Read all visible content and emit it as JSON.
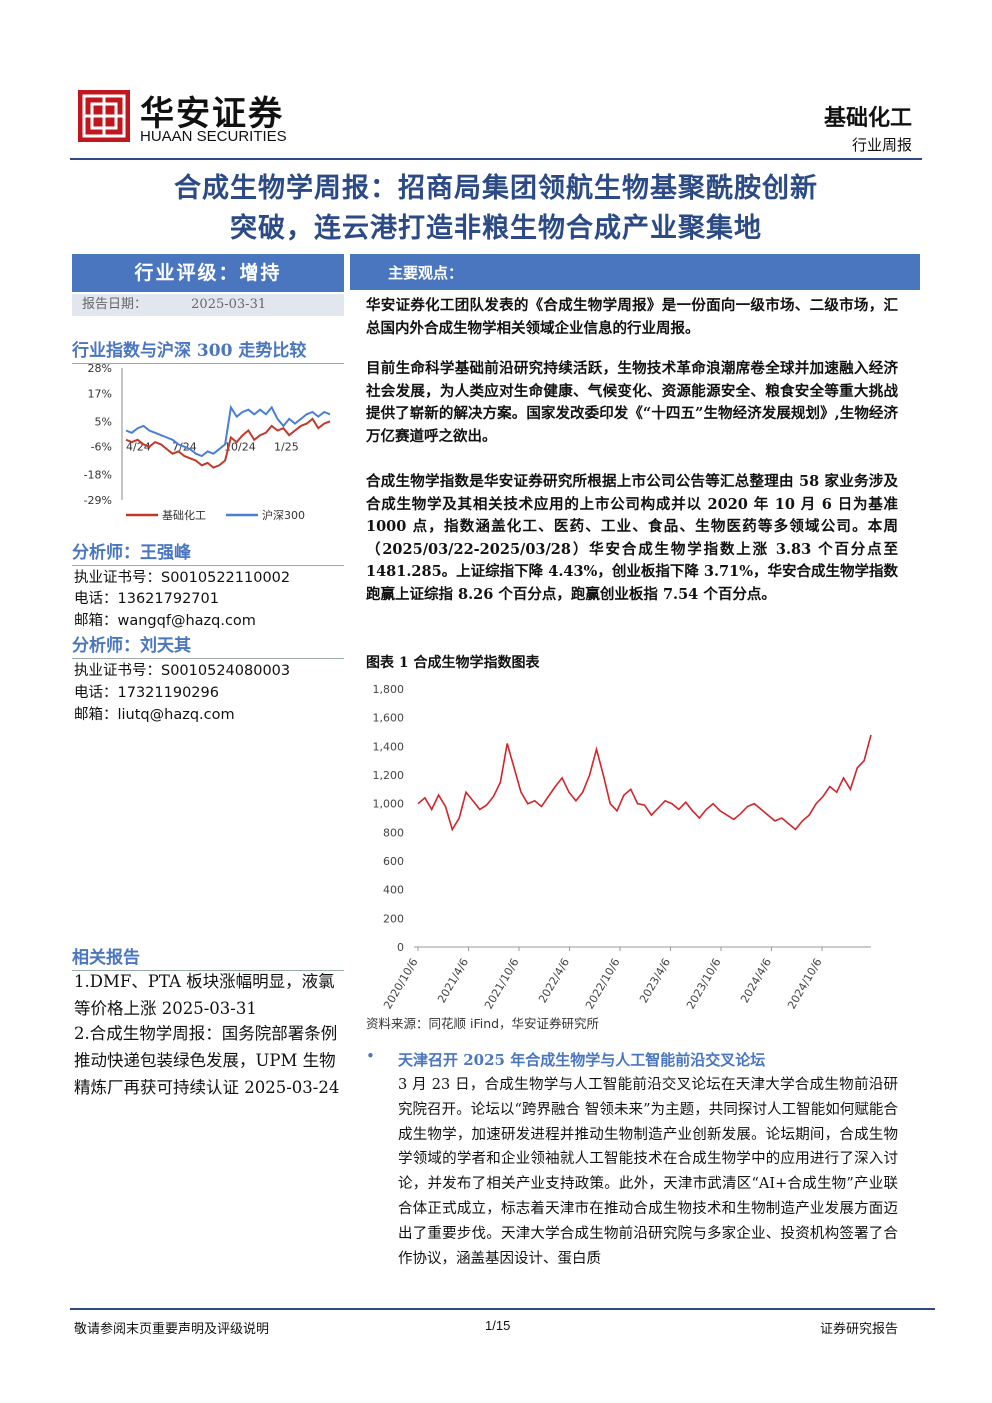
{
  "header": {
    "logo_cn": "华安证券",
    "logo_en": "HUAAN SECURITIES",
    "sector": "基础化工",
    "report_type": "行业周报"
  },
  "title": {
    "line1": "合成生物学周报：招商局集团领航生物基聚酰胺创新",
    "line2": "突破，连云港打造非粮生物合成产业聚集地"
  },
  "left": {
    "rating": "行业评级：增持",
    "report_date_label": "报告日期：",
    "report_date": "2025-03-31",
    "compare_title": "行业指数与沪深 300 走势比较",
    "analysts_heading1": "分析师：王强峰",
    "analyst1": {
      "cert": "执业证书号：S0010522110002",
      "phone": "电话：13621792701",
      "email": "邮箱：wangqf@hazq.com"
    },
    "analysts_heading2": "分析师：刘天其",
    "analyst2": {
      "cert": "执业证书号：S0010524080003",
      "phone": "电话：17321190296",
      "email": "邮箱：liutq@hazq.com"
    },
    "related_heading": "相关报告",
    "related": [
      "1.DMF、PTA 板块涨幅明显，液氯等价格上涨 2025-03-31",
      "2.合成生物学周报：国务院部署条例推动快递包装绿色发展，UPM 生物精炼厂再获可持续认证 2025-03-24"
    ]
  },
  "right": {
    "key_label": "主要观点：",
    "p1": "华安证券化工团队发表的《合成生物学周报》是一份面向一级市场、二级市场，汇总国内外合成生物学相关领域企业信息的行业周报。",
    "p2": "目前生命科学基础前沿研究持续活跃，生物技术革命浪潮席卷全球并加速融入经济社会发展，为人类应对生命健康、气候变化、资源能源安全、粮食安全等重大挑战提供了崭新的解决方案。国家发改委印发《“十四五”生物经济发展规划》,生物经济万亿赛道呼之欲出。",
    "p3": "合成生物学指数是华安证券研究所根据上市公司公告等汇总整理由 58 家业务涉及合成生物学及其相关技术应用的上市公司构成并以 2020 年 10 月 6 日为基准 1000 点，指数涵盖化工、医药、工业、食品、生物医药等多领域公司。本周（2025/03/22-2025/03/28）华安合成生物学指数上涨 3.83 个百分点至 1481.285。上证综指下降 4.43%，创业板指下降 3.71%，华安合成生物学指数跑赢上证综指 8.26 个百分点，跑赢创业板指 7.54 个百分点。",
    "fig_title": "图表 1 合成生物学指数图表",
    "source": "资料来源：同花顺 iFind，华安证券研究所",
    "news_title": "天津召开 2025 年合成生物学与人工智能前沿交叉论坛",
    "news_body": "3 月 23 日，合成生物学与人工智能前沿交叉论坛在天津大学合成生物前沿研究院召开。论坛以“跨界融合 智领未来”为主题，共同探讨人工智能如何赋能合成生物学，加速研发进程并推动生物制造产业创新发展。论坛期间，合成生物学领域的学者和企业领袖就人工智能技术在合成生物学中的应用进行了深入讨论，并发布了相关产业支持政策。此外，天津市武清区“AI+合成生物”产业联合体正式成立，标志着天津市在推动合成生物技术和生物制造产业发展方面迈出了重要步伐。天津大学合成生物前沿研究院与多家企业、投资机构签署了合作协议，涵盖基因设计、蛋白质"
  },
  "footer": {
    "left": "敬请参阅末页重要声明及评级说明",
    "page": "1/15",
    "right": "证券研究报告"
  },
  "colors": {
    "brand": "#2b4a86",
    "accent": "#4a76c0",
    "logo_red": "#c0161e",
    "series_industry": "#c0392b",
    "series_hs300": "#4a7fd4"
  },
  "chart_data": [
    {
      "type": "line",
      "title": "",
      "x_ticks": [
        "4/24",
        "7/24",
        "10/24",
        "1/25"
      ],
      "y_ticks": [
        "28%",
        "17%",
        "5%",
        "-6%",
        "-18%",
        "-29%"
      ],
      "ylim": [
        -29,
        28
      ],
      "legend_position": "bottom",
      "series": [
        {
          "name": "基础化工",
          "values": [
            -3,
            -4,
            -3,
            -5,
            -6,
            -4,
            -5,
            -7,
            -9,
            -8,
            -10,
            -11,
            -12,
            -14,
            -13,
            -15,
            -14,
            -12,
            -2,
            -4,
            -1,
            1,
            -3,
            -1,
            0,
            3,
            1,
            2,
            -1,
            1,
            3,
            4,
            6,
            2,
            4,
            5
          ]
        },
        {
          "name": "沪深300",
          "values": [
            1,
            0,
            2,
            3,
            1,
            0,
            -1,
            -2,
            -3,
            -5,
            -6,
            -7,
            -9,
            -10,
            -8,
            -9,
            -7,
            -5,
            11,
            7,
            9,
            10,
            8,
            10,
            8,
            11,
            6,
            3,
            6,
            4,
            6,
            8,
            9,
            7,
            9,
            8
          ]
        }
      ]
    },
    {
      "type": "line",
      "title": "合成生物学指数图表",
      "x_ticks": [
        "2020/10/6",
        "2021/4/6",
        "2021/10/6",
        "2022/4/6",
        "2022/10/6",
        "2023/4/6",
        "2023/10/6",
        "2024/4/6",
        "2024/10/6"
      ],
      "ylim": [
        0,
        1800
      ],
      "y_ticks": [
        0,
        200,
        400,
        600,
        800,
        1000,
        1200,
        1400,
        1600,
        1800
      ],
      "series": [
        {
          "name": "",
          "values": [
            1000,
            1040,
            960,
            1060,
            980,
            820,
            900,
            1080,
            1020,
            960,
            990,
            1050,
            1150,
            1420,
            1250,
            1080,
            1000,
            1020,
            980,
            1050,
            1120,
            1180,
            1080,
            1020,
            1080,
            1200,
            1380,
            1200,
            1000,
            950,
            1060,
            1100,
            1000,
            990,
            920,
            970,
            1020,
            1000,
            960,
            1010,
            950,
            900,
            960,
            1000,
            950,
            920,
            890,
            930,
            980,
            1000,
            960,
            920,
            880,
            900,
            860,
            820,
            880,
            920,
            1000,
            1050,
            1120,
            1080,
            1180,
            1100,
            1250,
            1300,
            1480
          ]
        }
      ]
    }
  ]
}
